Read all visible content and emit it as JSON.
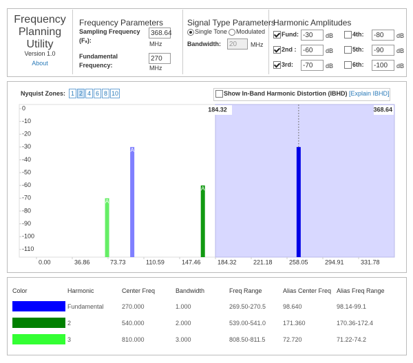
{
  "app": {
    "title": "Frequency Planning Utility",
    "version": "Version 1.0",
    "about": "About"
  },
  "freq_params": {
    "heading": "Frequency Parameters",
    "sampling_label": "Sampling Frequency (Fₛ):",
    "sampling_value": 368.64,
    "fundamental_label": "Fundamental Frequency:",
    "fundamental_value": 270,
    "unit": "MHz"
  },
  "signal": {
    "heading": "Signal Type Parameters",
    "options": [
      "Single Tone",
      "Modulated"
    ],
    "selected": 0,
    "bandwidth_label": "Bandwidth:",
    "bandwidth_value": 20,
    "unit": "MHz"
  },
  "harmonics": {
    "heading": "Harmonic Amplitudes",
    "unit": "dB",
    "items": [
      {
        "label": "Fund:",
        "value": -30,
        "checked": true
      },
      {
        "label": "2nd :",
        "value": -60,
        "checked": true
      },
      {
        "label": "3rd:",
        "value": -70,
        "checked": true
      },
      {
        "label": "4th:",
        "value": -80,
        "checked": false
      },
      {
        "label": "5th:",
        "value": -90,
        "checked": false
      },
      {
        "label": "6th:",
        "value": -100,
        "checked": false
      }
    ]
  },
  "nyquist": {
    "label": "Nyquist Zones:",
    "zones": [
      "1",
      "2",
      "4",
      "6",
      "8",
      "10"
    ],
    "selected": 1,
    "ibhd_label": "Show In-Band Harmonic Distortion (IBHD)",
    "explain": "[Explain IBHD]"
  },
  "chart_data": {
    "type": "bar",
    "x": [
      98.64,
      72.72,
      171.36,
      270
    ],
    "values": [
      -30,
      -70,
      -60,
      -30
    ],
    "colors": [
      "#7f7fff",
      "#66ee66",
      "#119911",
      "#0000e6"
    ],
    "alias_labels": [
      "A",
      "A",
      "A"
    ],
    "xlim": [
      0,
      368.64
    ],
    "ylim": [
      -116,
      0
    ],
    "xticks": [
      {
        "value": 0,
        "label": "0.00"
      },
      36.86,
      73.73,
      110.59,
      147.46,
      184.32,
      221.18,
      258.05,
      294.91,
      331.78
    ],
    "yticks": [
      0,
      -10,
      -20,
      -30,
      -40,
      -50,
      -60,
      -70,
      -80,
      -90,
      -100,
      -110
    ],
    "zone": [
      184.32,
      368.64
    ],
    "zone_color": "#d8d8ff"
  },
  "table": {
    "headers": [
      "Color",
      "Harmonic",
      "Center Freq",
      "Bandwidth",
      "Freq Range",
      "Alias Center Freq",
      "Alias Freq Range"
    ],
    "rows": [
      {
        "color": "#0000ff",
        "cells": [
          "Fundamental",
          "270.000",
          "1.000",
          "269.50-270.5",
          "98.640",
          "98.14-99.1"
        ]
      },
      {
        "color": "#008000",
        "cells": [
          "2",
          "540.000",
          "2.000",
          "539.00-541.0",
          "171.360",
          "170.36-172.4"
        ]
      },
      {
        "color": "#33ff33",
        "cells": [
          "3",
          "810.000",
          "3.000",
          "808.50-811.5",
          "72.720",
          "71.22-74.2"
        ]
      }
    ]
  }
}
